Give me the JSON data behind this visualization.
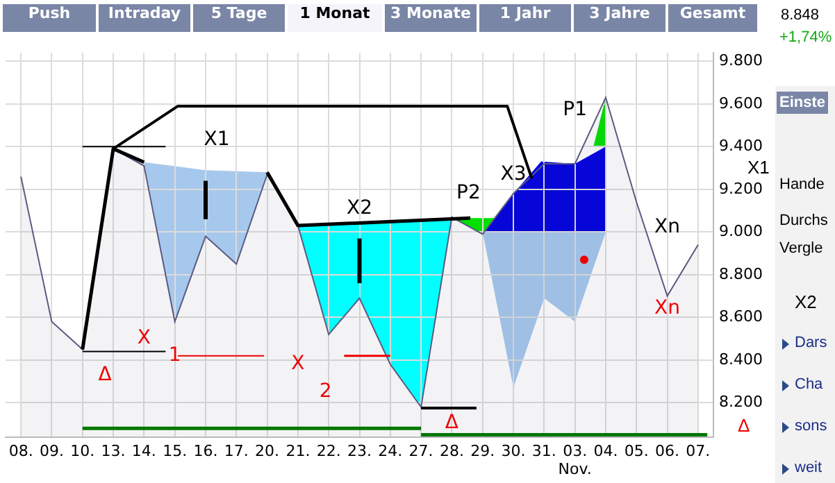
{
  "chart_data": {
    "type": "area",
    "categories": [
      "08.",
      "09.",
      "10.",
      "13.",
      "14.",
      "15.",
      "16.",
      "17.",
      "20.",
      "21.",
      "22.",
      "23.",
      "24.",
      "27.",
      "28.",
      "29.",
      "30.",
      "31.",
      "03.",
      "04.",
      "05.",
      "06.",
      "07."
    ],
    "series": [
      {
        "color": "#5a5a80",
        "values": [
          9260,
          8580,
          8450,
          9390,
          9310,
          8580,
          8980,
          8850,
          9270,
          9030,
          8520,
          8690,
          8380,
          8180,
          9070,
          8990,
          9180,
          9320,
          9320,
          9630,
          9140,
          8700,
          8940
        ]
      }
    ],
    "ylim": [
      8040,
      9840
    ],
    "yticks": [
      {
        "value": 8200,
        "label": "8.200"
      },
      {
        "value": 8400,
        "label": "8.400"
      },
      {
        "value": 8600,
        "label": "8.600"
      },
      {
        "value": 8800,
        "label": "8.800"
      },
      {
        "value": 9000,
        "label": "9.000"
      },
      {
        "value": 9200,
        "label": "9.200"
      },
      {
        "value": 9400,
        "label": "9.400"
      },
      {
        "value": 9600,
        "label": "9.600"
      },
      {
        "value": 9800,
        "label": "9.800"
      }
    ],
    "grid": true,
    "legend": false,
    "annotations": [
      "Push",
      "Intraday",
      "5 Tage",
      "1 Monat",
      "3 Monate",
      "1 Jahr",
      "3 Jahre",
      "Gesamt",
      "8.848",
      "+1,74%",
      "Einste",
      "Hande",
      "Durchs",
      "Vergle",
      "Dars",
      "Cha",
      "sons",
      "weit",
      "X1",
      "X2",
      "Δ",
      "X1",
      "X2",
      "X3",
      {
        "text": "P2",
        "x": "28.",
        "y": 9065
      },
      "P1",
      "Xn",
      "Xn",
      "X",
      "1",
      "X",
      "2",
      "Δ",
      "Δ",
      "Nov."
    ]
  }
}
